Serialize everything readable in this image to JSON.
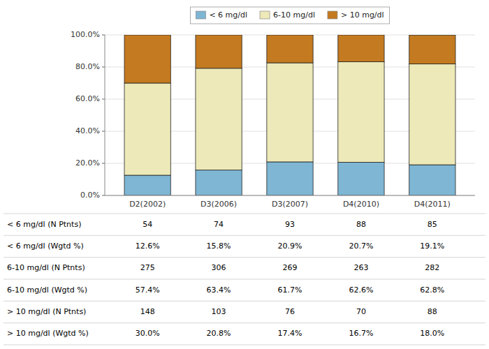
{
  "chart_data": {
    "type": "bar",
    "stacked": true,
    "categories": [
      "D2(2002)",
      "D3(2006)",
      "D3(2007)",
      "D4(2010)",
      "D4(2011)"
    ],
    "series": [
      {
        "name": "< 6 mg/dl",
        "color": "#7eb6d4",
        "values": [
          12.6,
          15.8,
          20.9,
          20.7,
          19.1
        ]
      },
      {
        "name": "6-10 mg/dl",
        "color": "#ede9b8",
        "values": [
          57.4,
          63.4,
          61.7,
          62.6,
          62.8
        ]
      },
      {
        "name": "> 10 mg/dl",
        "color": "#c47a20",
        "values": [
          30.0,
          20.8,
          17.4,
          16.7,
          18.0
        ]
      }
    ],
    "ylim": [
      0,
      100
    ],
    "yticks": [
      {
        "value": 0,
        "label": "0.0%"
      },
      {
        "value": 20,
        "label": "20.0%"
      },
      {
        "value": 40,
        "label": "40.0%"
      },
      {
        "value": 60,
        "label": "60.0%"
      },
      {
        "value": 80,
        "label": "80.0%"
      },
      {
        "value": 100,
        "label": "100.0%"
      }
    ],
    "grid": true,
    "legend": "top",
    "table": {
      "row_labels": [
        "< 6 mg/dl  (N Ptnts)",
        "< 6 mg/dl  (Wgtd %)",
        "6-10 mg/dl (N Ptnts)",
        "6-10 mg/dl (Wgtd %)",
        "> 10 mg/dl (N Ptnts)",
        "> 10 mg/dl (Wgtd %)"
      ],
      "cells": [
        [
          "54",
          "74",
          "93",
          "88",
          "85"
        ],
        [
          "12.6%",
          "15.8%",
          "20.9%",
          "20.7%",
          "19.1%"
        ],
        [
          "275",
          "306",
          "269",
          "263",
          "282"
        ],
        [
          "57.4%",
          "63.4%",
          "61.7%",
          "62.6%",
          "62.8%"
        ],
        [
          "148",
          "103",
          "76",
          "70",
          "88"
        ],
        [
          "30.0%",
          "20.8%",
          "17.4%",
          "16.7%",
          "18.0%"
        ]
      ]
    }
  }
}
